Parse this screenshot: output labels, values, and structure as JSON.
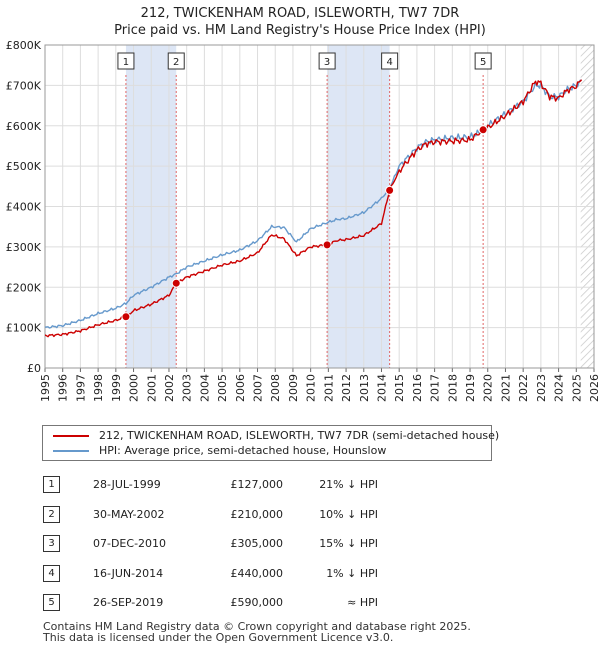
{
  "title_line1": "212, TWICKENHAM ROAD, ISLEWORTH, TW7 7DR",
  "title_line2": "Price paid vs. HM Land Registry's House Price Index (HPI)",
  "legend": {
    "red_label": "212, TWICKENHAM ROAD, ISLEWORTH, TW7 7DR (semi-detached house)",
    "blue_label": "HPI: Average price, semi-detached house, Hounslow"
  },
  "sales": [
    {
      "num": "1",
      "date": "28-JUL-1999",
      "price": "£127,000",
      "hpi": "21% ↓ HPI"
    },
    {
      "num": "2",
      "date": "30-MAY-2002",
      "price": "£210,000",
      "hpi": "10% ↓ HPI"
    },
    {
      "num": "3",
      "date": "07-DEC-2010",
      "price": "£305,000",
      "hpi": "15% ↓ HPI"
    },
    {
      "num": "4",
      "date": "16-JUN-2014",
      "price": "£440,000",
      "hpi": "1% ↓ HPI"
    },
    {
      "num": "5",
      "date": "26-SEP-2019",
      "price": "£590,000",
      "hpi": "≈ HPI"
    }
  ],
  "footer": {
    "line1": "Contains HM Land Registry data © Crown copyright and database right 2025.",
    "line2": "This data is licensed under the Open Government Licence v3.0."
  },
  "colors": {
    "red": "#cc0000",
    "blue": "#6699cc",
    "shade": "#dde6f5",
    "grid": "#dddddd"
  },
  "chart_data": {
    "type": "line",
    "xlim": [
      1995,
      2026
    ],
    "ylim": [
      0,
      800000
    ],
    "y_ticks": [
      {
        "value": 0,
        "label": "£0"
      },
      {
        "value": 100000,
        "label": "£100K"
      },
      {
        "value": 200000,
        "label": "£200K"
      },
      {
        "value": 300000,
        "label": "£300K"
      },
      {
        "value": 400000,
        "label": "£400K"
      },
      {
        "value": 500000,
        "label": "£500K"
      },
      {
        "value": 600000,
        "label": "£600K"
      },
      {
        "value": 700000,
        "label": "£700K"
      },
      {
        "value": 800000,
        "label": "£800K"
      }
    ],
    "x_ticks": [
      "1995",
      "1996",
      "1997",
      "1998",
      "1999",
      "2000",
      "2001",
      "2002",
      "2003",
      "2004",
      "2005",
      "2006",
      "2007",
      "2008",
      "2009",
      "2010",
      "2011",
      "2012",
      "2013",
      "2014",
      "2015",
      "2016",
      "2017",
      "2018",
      "2019",
      "2020",
      "2021",
      "2022",
      "2023",
      "2024",
      "2025",
      "2026"
    ],
    "shaded_ranges": [
      [
        1999.57,
        2002.41
      ],
      [
        2010.93,
        2014.46
      ]
    ],
    "hatch_from": 2025.25,
    "sale_markers": [
      {
        "label": "1",
        "x": 1999.57,
        "y": 127000
      },
      {
        "label": "2",
        "x": 2002.41,
        "y": 210000
      },
      {
        "label": "3",
        "x": 2010.93,
        "y": 305000
      },
      {
        "label": "4",
        "x": 2014.46,
        "y": 440000
      },
      {
        "label": "5",
        "x": 2019.74,
        "y": 590000
      }
    ],
    "series": [
      {
        "name": "HPI: Average price, semi-detached house, Hounslow",
        "color": "#6699cc",
        "x": [
          1995,
          1996,
          1997,
          1998,
          1999,
          1999.57,
          2000,
          2001,
          2002,
          2002.41,
          2003,
          2004,
          2005,
          2006,
          2007,
          2007.8,
          2008.5,
          2009.2,
          2010,
          2010.93,
          2011.5,
          2012,
          2013,
          2014,
          2014.46,
          2015,
          2016,
          2016.5,
          2017,
          2018,
          2019,
          2019.74,
          2020,
          2021,
          2022,
          2022.7,
          2023,
          2023.5,
          2024,
          2024.5,
          2025,
          2025.3
        ],
        "y": [
          100000,
          105000,
          118000,
          135000,
          148000,
          160000,
          180000,
          200000,
          225000,
          233000,
          250000,
          265000,
          280000,
          292000,
          315000,
          350000,
          348000,
          312000,
          345000,
          360000,
          368000,
          370000,
          385000,
          420000,
          445000,
          500000,
          545000,
          560000,
          565000,
          570000,
          572000,
          588000,
          600000,
          630000,
          660000,
          700000,
          700000,
          672000,
          672000,
          690000,
          700000,
          712000
        ]
      },
      {
        "name": "212, TWICKENHAM ROAD, ISLEWORTH, TW7 7DR (semi-detached house)",
        "color": "#cc0000",
        "x": [
          1995,
          1996,
          1997,
          1998,
          1999,
          1999.57,
          2000,
          2001,
          2002,
          2002.41,
          2003,
          2004,
          2005,
          2006,
          2007,
          2007.8,
          2008.5,
          2009.2,
          2010,
          2010.93,
          2011.5,
          2012,
          2013,
          2014,
          2014.46,
          2015,
          2016,
          2016.5,
          2017,
          2018,
          2019,
          2019.74,
          2020,
          2021,
          2022,
          2022.7,
          2023,
          2023.5,
          2024,
          2024.5,
          2025,
          2025.3
        ],
        "y": [
          80000,
          83000,
          92000,
          107000,
          118000,
          127000,
          142000,
          158000,
          180000,
          210000,
          225000,
          240000,
          255000,
          265000,
          285000,
          330000,
          320000,
          278000,
          300000,
          305000,
          316000,
          318000,
          328000,
          358000,
          440000,
          488000,
          540000,
          555000,
          560000,
          562000,
          565000,
          590000,
          595000,
          625000,
          660000,
          710000,
          705000,
          672000,
          668000,
          688000,
          698000,
          714000
        ]
      }
    ]
  }
}
